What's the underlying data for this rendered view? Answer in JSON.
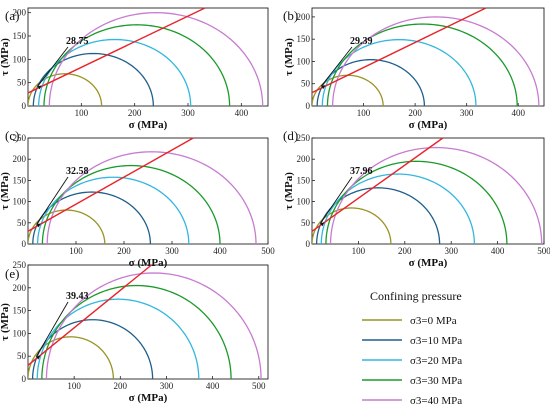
{
  "legend": {
    "title": "Confining pressure",
    "items": [
      {
        "label": "σ3=0 MPa",
        "color": "#9a9424"
      },
      {
        "label": "σ3=10 MPa",
        "color": "#1f5f8b"
      },
      {
        "label": "σ3=20 MPa",
        "color": "#33b7dd"
      },
      {
        "label": "σ3=30 MPa",
        "color": "#1b9a2a"
      },
      {
        "label": "σ3=40 MPa",
        "color": "#c77cd0"
      }
    ]
  },
  "envelope_color": "#e8242b",
  "chart_data": [
    {
      "panel": "(a)",
      "type": "mohr-circles",
      "xlabel": "σ (MPa)",
      "ylabel": "τ (MPa)",
      "xlim": [
        0,
        450
      ],
      "ylim": [
        0,
        210
      ],
      "xticks": [
        100,
        200,
        300,
        400
      ],
      "yticks": [
        0,
        50,
        100,
        150,
        200
      ],
      "xlabel_ticks": [
        "100",
        "200",
        "300",
        "400"
      ],
      "ylabel_ticks": [
        "0",
        "50",
        "100",
        "150",
        "200"
      ],
      "annotation": "28.75",
      "envelope": {
        "cohesion": 28,
        "friction_angle": 28.75
      },
      "circles": [
        {
          "sigma3": 0,
          "sigma1": 138
        },
        {
          "sigma3": 10,
          "sigma1": 235
        },
        {
          "sigma3": 20,
          "sigma1": 305
        },
        {
          "sigma3": 30,
          "sigma1": 378
        },
        {
          "sigma3": 40,
          "sigma1": 440
        }
      ]
    },
    {
      "panel": "(b)",
      "type": "mohr-circles",
      "xlabel": "σ (MPa)",
      "ylabel": "τ (MPa)",
      "xlim": [
        0,
        450
      ],
      "ylim": [
        0,
        220
      ],
      "xticks": [
        100,
        200,
        300,
        400
      ],
      "yticks": [
        0,
        50,
        100,
        150,
        200
      ],
      "xlabel_ticks": [
        "100",
        "200",
        "300",
        "400"
      ],
      "ylabel_ticks": [
        "0",
        "50",
        "100",
        "150",
        "200"
      ],
      "annotation": "29.39",
      "envelope": {
        "cohesion": 30,
        "friction_angle": 29.39
      },
      "circles": [
        {
          "sigma3": 0,
          "sigma1": 138
        },
        {
          "sigma3": 10,
          "sigma1": 218
        },
        {
          "sigma3": 20,
          "sigma1": 318
        },
        {
          "sigma3": 30,
          "sigma1": 398
        },
        {
          "sigma3": 40,
          "sigma1": 440
        }
      ]
    },
    {
      "panel": "(c)",
      "type": "mohr-circles",
      "xlabel": "σ (MPa)",
      "ylabel": "τ (MPa)",
      "xlim": [
        0,
        500
      ],
      "ylim": [
        0,
        250
      ],
      "xticks": [
        100,
        200,
        300,
        400,
        500
      ],
      "yticks": [
        0,
        50,
        100,
        150,
        200,
        250
      ],
      "xlabel_ticks": [
        "100",
        "200",
        "300",
        "400",
        "500"
      ],
      "ylabel_ticks": [
        "0",
        "50",
        "100",
        "150",
        "200",
        "250"
      ],
      "annotation": "32.58",
      "envelope": {
        "cohesion": 30,
        "friction_angle": 32.58
      },
      "circles": [
        {
          "sigma3": 0,
          "sigma1": 160
        },
        {
          "sigma3": 10,
          "sigma1": 255
        },
        {
          "sigma3": 20,
          "sigma1": 335
        },
        {
          "sigma3": 30,
          "sigma1": 400
        },
        {
          "sigma3": 40,
          "sigma1": 475
        }
      ]
    },
    {
      "panel": "(d)",
      "type": "mohr-circles",
      "xlabel": "σ (MPa)",
      "ylabel": "τ (MPa)",
      "xlim": [
        0,
        500
      ],
      "ylim": [
        0,
        250
      ],
      "xticks": [
        100,
        200,
        300,
        400,
        500
      ],
      "yticks": [
        0,
        50,
        100,
        150,
        200,
        250
      ],
      "xlabel_ticks": [
        "100",
        "200",
        "300",
        "400",
        "500"
      ],
      "ylabel_ticks": [
        "0",
        "50",
        "100",
        "150",
        "200",
        "250"
      ],
      "annotation": "37.96",
      "envelope": {
        "cohesion": 30,
        "friction_angle": 37.96
      },
      "circles": [
        {
          "sigma3": 0,
          "sigma1": 170
        },
        {
          "sigma3": 10,
          "sigma1": 275
        },
        {
          "sigma3": 20,
          "sigma1": 350
        },
        {
          "sigma3": 30,
          "sigma1": 420
        },
        {
          "sigma3": 40,
          "sigma1": 495
        }
      ]
    },
    {
      "panel": "(e)",
      "type": "mohr-circles",
      "xlabel": "σ (MPa)",
      "ylabel": "τ (MPa)",
      "xlim": [
        0,
        520
      ],
      "ylim": [
        0,
        250
      ],
      "xticks": [
        100,
        200,
        300,
        400,
        500
      ],
      "yticks": [
        0,
        50,
        100,
        150,
        200,
        250
      ],
      "xlabel_ticks": [
        "100",
        "200",
        "300",
        "400",
        "500"
      ],
      "ylabel_ticks": [
        "0",
        "50",
        "100",
        "150",
        "200",
        "250"
      ],
      "annotation": "39.43",
      "envelope": {
        "cohesion": 30,
        "friction_angle": 39.43
      },
      "circles": [
        {
          "sigma3": 0,
          "sigma1": 185
        },
        {
          "sigma3": 10,
          "sigma1": 270
        },
        {
          "sigma3": 20,
          "sigma1": 370
        },
        {
          "sigma3": 30,
          "sigma1": 440
        },
        {
          "sigma3": 40,
          "sigma1": 505
        }
      ]
    }
  ]
}
